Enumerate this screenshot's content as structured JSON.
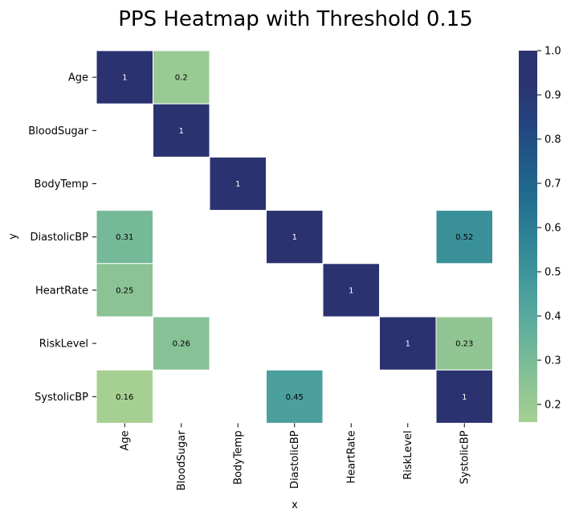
{
  "chart_data": {
    "type": "heatmap",
    "title": "PPS Heatmap with Threshold 0.15",
    "xlabel": "x",
    "ylabel": "y",
    "x_categories": [
      "Age",
      "BloodSugar",
      "BodyTemp",
      "DiastolicBP",
      "HeartRate",
      "RiskLevel",
      "SystolicBP"
    ],
    "y_categories": [
      "Age",
      "BloodSugar",
      "BodyTemp",
      "DiastolicBP",
      "HeartRate",
      "RiskLevel",
      "SystolicBP"
    ],
    "values": [
      [
        1,
        0.2,
        null,
        null,
        null,
        null,
        null
      ],
      [
        null,
        1,
        null,
        null,
        null,
        null,
        null
      ],
      [
        null,
        null,
        1,
        null,
        null,
        null,
        null
      ],
      [
        0.31,
        null,
        null,
        1,
        null,
        null,
        0.52
      ],
      [
        0.25,
        null,
        null,
        null,
        1,
        null,
        null
      ],
      [
        null,
        0.26,
        null,
        null,
        null,
        1,
        0.23
      ],
      [
        0.16,
        null,
        null,
        0.45,
        null,
        null,
        1
      ]
    ],
    "cell_labels": [
      [
        "1",
        "0.2",
        "",
        "",
        "",
        "",
        ""
      ],
      [
        "",
        "1",
        "",
        "",
        "",
        "",
        ""
      ],
      [
        "",
        "",
        "1",
        "",
        "",
        "",
        ""
      ],
      [
        "0.31",
        "",
        "",
        "1",
        "",
        "",
        "0.52"
      ],
      [
        "0.25",
        "",
        "",
        "",
        "1",
        "",
        ""
      ],
      [
        "",
        "0.26",
        "",
        "",
        "",
        "1",
        "0.23"
      ],
      [
        "0.16",
        "",
        "",
        "0.45",
        "",
        "",
        "1"
      ]
    ],
    "colorbar": {
      "min": 0.16,
      "max": 1.0,
      "ticks": [
        0.2,
        0.3,
        0.4,
        0.5,
        0.6,
        0.7,
        0.8,
        0.9,
        1.0
      ],
      "tick_labels": [
        "0.2",
        "0.3",
        "0.4",
        "0.5",
        "0.6",
        "0.7",
        "0.8",
        "0.9",
        "1.0"
      ]
    },
    "colormap": [
      "#a5d091",
      "#8dc495",
      "#6fb69a",
      "#55a79e",
      "#3f959b",
      "#2e8295",
      "#226d8f",
      "#205a88",
      "#244580",
      "#2a3572",
      "#2b3270"
    ],
    "cell_border_color": "#ffffff"
  }
}
